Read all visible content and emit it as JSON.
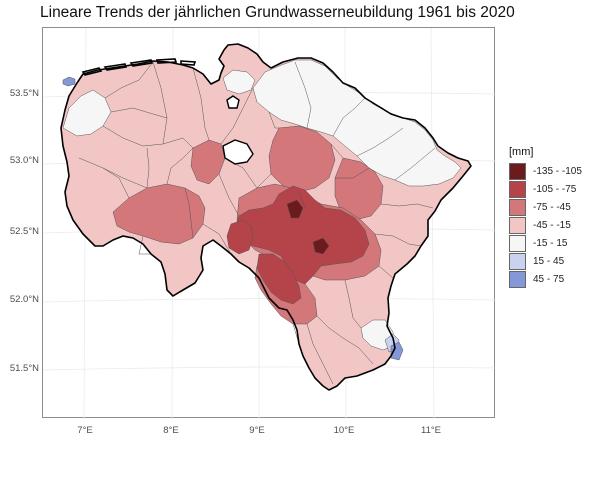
{
  "title": "Lineare Trends der jährlichen Grundwasserneubildung 1961 bis 2020",
  "axes": {
    "y_ticks": [
      "53.5°N",
      "53.0°N",
      "52.5°N",
      "52.0°N",
      "51.5°N"
    ],
    "x_ticks": [
      "7°E",
      "8°E",
      "9°E",
      "10°E",
      "11°E"
    ]
  },
  "legend": {
    "title": "[mm]",
    "items": [
      {
        "label": "-135 - -105",
        "color": "#6b1a1e"
      },
      {
        "label": "-105 - -75",
        "color": "#b5434a"
      },
      {
        "label": "-75 - -45",
        "color": "#d3777a"
      },
      {
        "label": "-45 - -15",
        "color": "#f1c6c5"
      },
      {
        "label": "-15 - 15",
        "color": "#f6f6f6"
      },
      {
        "label": "15 - 45",
        "color": "#c9d2ee"
      },
      {
        "label": "45 - 75",
        "color": "#8497d6"
      }
    ]
  },
  "map": {
    "colors": {
      "c1": "#6b1a1e",
      "c2": "#b5434a",
      "c3": "#d3777a",
      "c4": "#f1c6c5",
      "c5": "#f6f6f6",
      "c6": "#c9d2ee",
      "c7": "#8497d6",
      "border": "#000000",
      "subborder": "#555555",
      "grid": "#ebebeb"
    }
  }
}
